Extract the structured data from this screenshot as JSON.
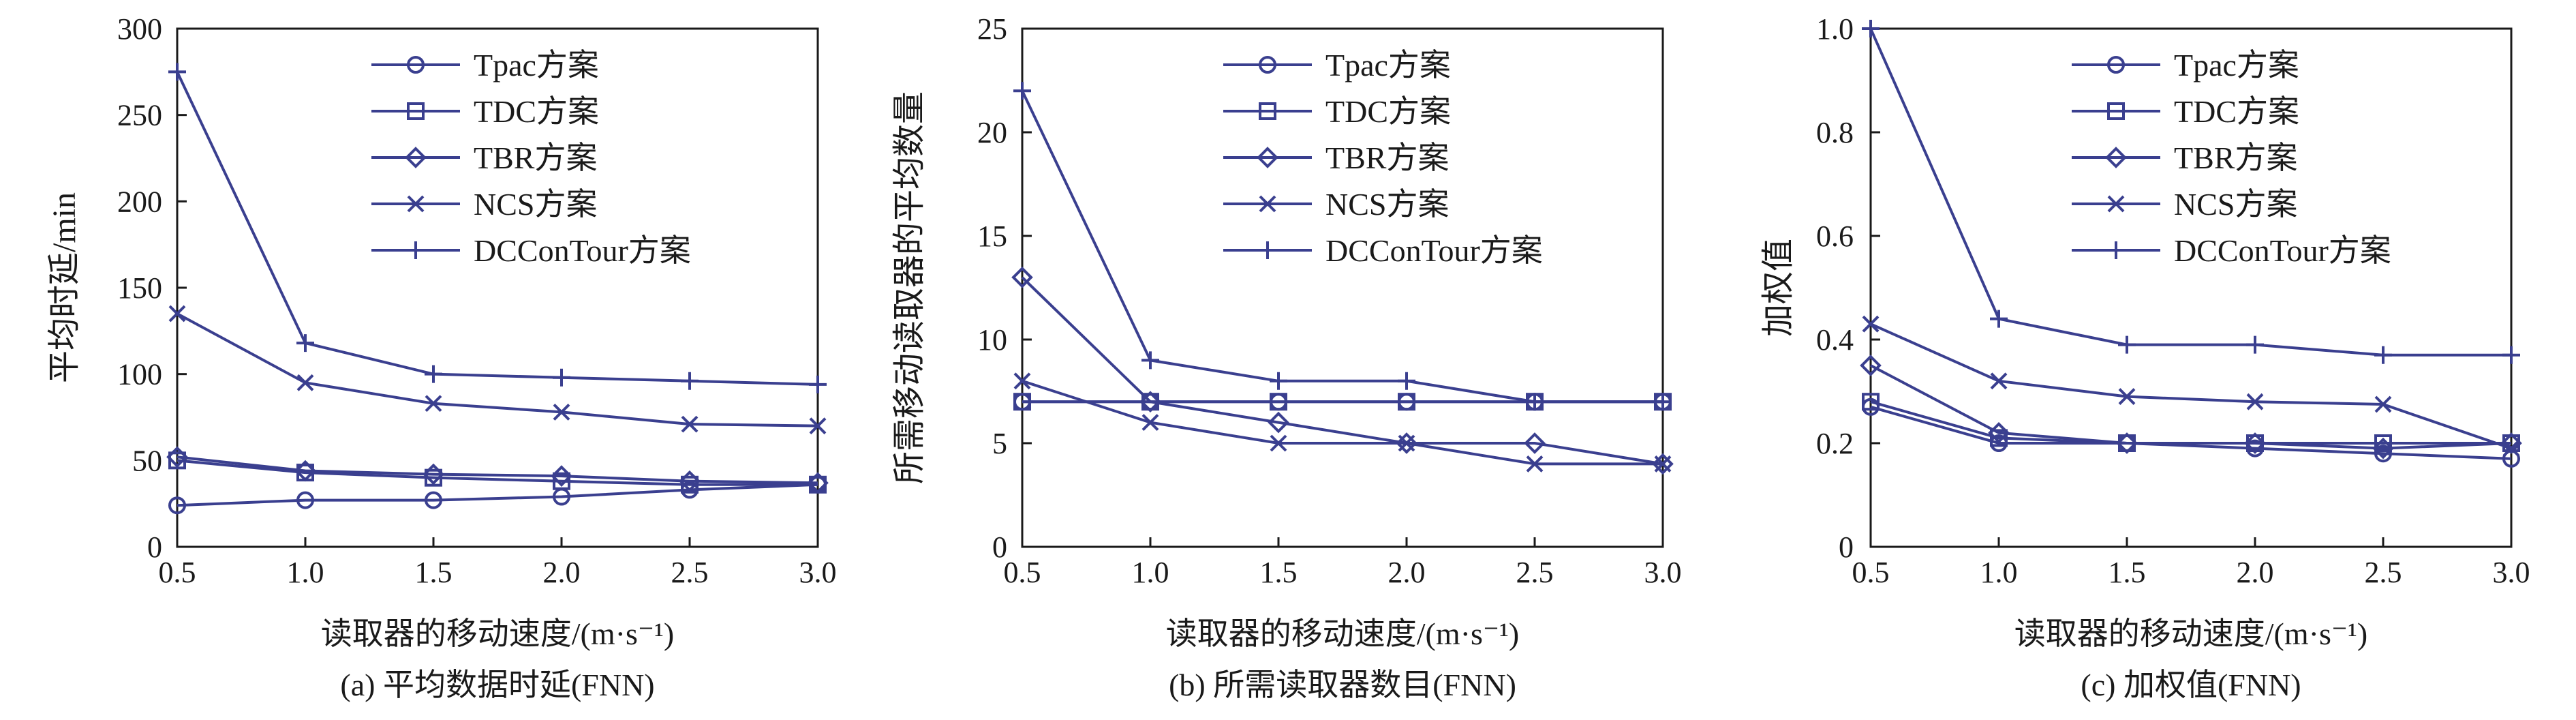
{
  "colors": {
    "series": "#3a3f8f",
    "axis": "#1a1a1a"
  },
  "chart_data": [
    {
      "type": "line",
      "caption": "(a) 平均数据时延(FNN)",
      "xlabel": "读取器的移动速度/(m·s⁻¹)",
      "ylabel": "平均时延/min",
      "x": [
        0.5,
        1.0,
        1.5,
        2.0,
        2.5,
        3.0
      ],
      "xticks": [
        "0.5",
        "1.0",
        "1.5",
        "2.0",
        "2.5",
        "3.0"
      ],
      "xlim": [
        0.5,
        3.0
      ],
      "yticks": [
        "0",
        "50",
        "100",
        "150",
        "200",
        "250",
        "300"
      ],
      "ylim": [
        0,
        300
      ],
      "grid": false,
      "legend_position": "top-center",
      "series": [
        {
          "name": "Tpac方案",
          "marker": "circle",
          "values": [
            24,
            27,
            27,
            29,
            33,
            36
          ]
        },
        {
          "name": "TDC方案",
          "marker": "square",
          "values": [
            50,
            43,
            40,
            38,
            36,
            36
          ]
        },
        {
          "name": "TBR方案",
          "marker": "diamond",
          "values": [
            52,
            44,
            42,
            41,
            38,
            37
          ]
        },
        {
          "name": "NCS方案",
          "marker": "x",
          "values": [
            135,
            95,
            83,
            78,
            71,
            70
          ]
        },
        {
          "name": "DCConTour方案",
          "marker": "plus",
          "values": [
            275,
            118,
            100,
            98,
            96,
            94
          ]
        }
      ]
    },
    {
      "type": "line",
      "caption": "(b) 所需读取器数目(FNN)",
      "xlabel": "读取器的移动速度/(m·s⁻¹)",
      "ylabel": "所需移动读取器的平均数量",
      "x": [
        0.5,
        1.0,
        1.5,
        2.0,
        2.5,
        3.0
      ],
      "xticks": [
        "0.5",
        "1.0",
        "1.5",
        "2.0",
        "2.5",
        "3.0"
      ],
      "xlim": [
        0.5,
        3.0
      ],
      "yticks": [
        "0",
        "5",
        "10",
        "15",
        "20",
        "25"
      ],
      "ylim": [
        0,
        25
      ],
      "grid": false,
      "legend_position": "top-center",
      "series": [
        {
          "name": "Tpac方案",
          "marker": "circle",
          "values": [
            7,
            7,
            7,
            7,
            7,
            7
          ]
        },
        {
          "name": "TDC方案",
          "marker": "square",
          "values": [
            7,
            7,
            7,
            7,
            7,
            7
          ]
        },
        {
          "name": "TBR方案",
          "marker": "diamond",
          "values": [
            13,
            7,
            6,
            5,
            5,
            4
          ]
        },
        {
          "name": "NCS方案",
          "marker": "x",
          "values": [
            8,
            6,
            5,
            5,
            4,
            4
          ]
        },
        {
          "name": "DCConTour方案",
          "marker": "plus",
          "values": [
            22,
            9,
            8,
            8,
            7,
            7
          ]
        }
      ]
    },
    {
      "type": "line",
      "caption": "(c) 加权值(FNN)",
      "xlabel": "读取器的移动速度/(m·s⁻¹)",
      "ylabel": "加权值",
      "x": [
        0.5,
        1.0,
        1.5,
        2.0,
        2.5,
        3.0
      ],
      "xticks": [
        "0.5",
        "1.0",
        "1.5",
        "2.0",
        "2.5",
        "3.0"
      ],
      "xlim": [
        0.5,
        3.0
      ],
      "yticks": [
        "0",
        "0.2",
        "0.4",
        "0.6",
        "0.8",
        "1.0"
      ],
      "ylim": [
        0,
        1.0
      ],
      "grid": false,
      "legend_position": "top-center",
      "series": [
        {
          "name": "Tpac方案",
          "marker": "circle",
          "values": [
            0.27,
            0.2,
            0.2,
            0.19,
            0.18,
            0.17
          ]
        },
        {
          "name": "TDC方案",
          "marker": "square",
          "values": [
            0.28,
            0.21,
            0.2,
            0.2,
            0.2,
            0.2
          ]
        },
        {
          "name": "TBR方案",
          "marker": "diamond",
          "values": [
            0.35,
            0.22,
            0.2,
            0.2,
            0.19,
            0.2
          ]
        },
        {
          "name": "NCS方案",
          "marker": "x",
          "values": [
            0.43,
            0.32,
            0.29,
            0.28,
            0.275,
            0.19
          ]
        },
        {
          "name": "DCConTour方案",
          "marker": "plus",
          "values": [
            1.0,
            0.44,
            0.39,
            0.39,
            0.37,
            0.37
          ]
        }
      ]
    }
  ]
}
